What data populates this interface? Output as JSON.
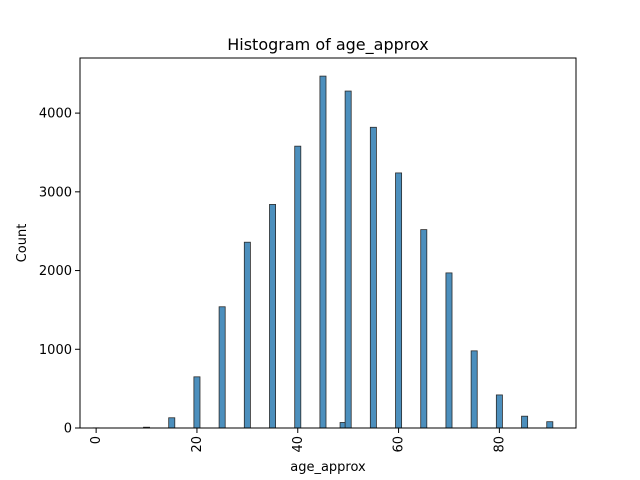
{
  "chart_data": {
    "type": "histogram",
    "title": "Histogram of age_approx",
    "xlabel": "age_approx",
    "ylabel": "Count",
    "xlim": [
      -3.2,
      95.2
    ],
    "ylim": [
      0,
      4700
    ],
    "xticks": [
      0,
      20,
      40,
      60,
      80
    ],
    "yticks": [
      0,
      1000,
      2000,
      3000,
      4000
    ],
    "bar_width": 1.21,
    "bar_color": "#4c8fbd",
    "bar_edge_color": "#2b2b2b",
    "x_tick_rotation": 90,
    "bins": [
      {
        "x": 0,
        "count": 2
      },
      {
        "x": 10,
        "count": 10
      },
      {
        "x": 15,
        "count": 130
      },
      {
        "x": 20,
        "count": 650
      },
      {
        "x": 25,
        "count": 1540
      },
      {
        "x": 30,
        "count": 2360
      },
      {
        "x": 35,
        "count": 2840
      },
      {
        "x": 40,
        "count": 3580
      },
      {
        "x": 45,
        "count": 4470
      },
      {
        "x": 49,
        "count": 70
      },
      {
        "x": 50,
        "count": 4280
      },
      {
        "x": 55,
        "count": 3820
      },
      {
        "x": 60,
        "count": 3240
      },
      {
        "x": 65,
        "count": 2520
      },
      {
        "x": 70,
        "count": 1970
      },
      {
        "x": 75,
        "count": 980
      },
      {
        "x": 80,
        "count": 420
      },
      {
        "x": 85,
        "count": 150
      },
      {
        "x": 90,
        "count": 80
      }
    ]
  }
}
